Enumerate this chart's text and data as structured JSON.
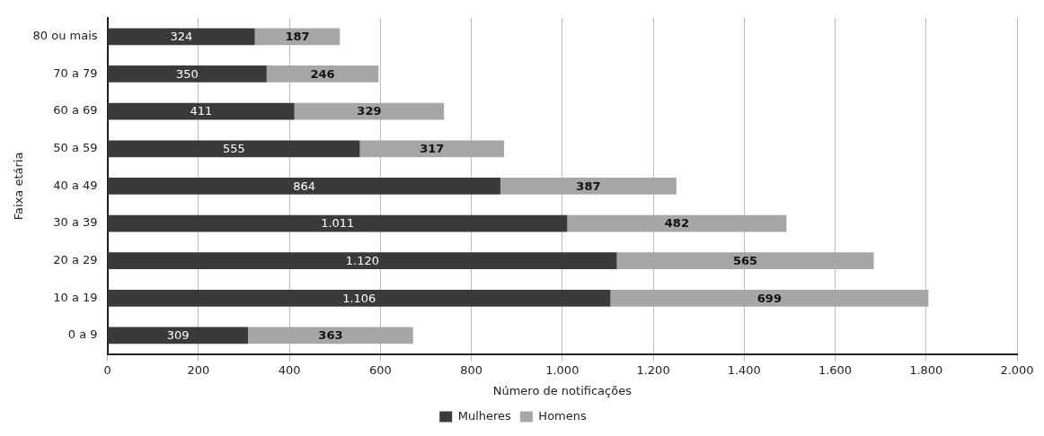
{
  "chart_data": {
    "type": "bar",
    "orientation": "horizontal",
    "stacked": true,
    "ylabel": "Faixa etária",
    "xlabel": "Número de notificações",
    "categories": [
      "80 ou mais",
      "70 a 79",
      "60 a 69",
      "50 a 59",
      "40 a 49",
      "30 a 39",
      "20 a 29",
      "10 a 19",
      "0 a 9"
    ],
    "series": [
      {
        "name": "Mulheres",
        "color": "#3a3a3a",
        "values": [
          324,
          350,
          411,
          555,
          864,
          1011,
          1120,
          1106,
          309
        ],
        "value_labels": [
          "324",
          "350",
          "411",
          "555",
          "864",
          "1.011",
          "1.120",
          "1.106",
          "309"
        ]
      },
      {
        "name": "Homens",
        "color": "#a6a6a6",
        "values": [
          187,
          246,
          329,
          317,
          387,
          482,
          565,
          699,
          363
        ],
        "value_labels": [
          "187",
          "246",
          "329",
          "317",
          "387",
          "482",
          "565",
          "699",
          "363"
        ]
      }
    ],
    "xlim": [
      0,
      2000
    ],
    "xticks": [
      0,
      200,
      400,
      600,
      800,
      {
        "value": 1000,
        "label": "1.000"
      },
      {
        "value": 1200,
        "label": "1.200"
      },
      {
        "value": 1400,
        "label": "1.400"
      },
      {
        "value": 1600,
        "label": "1.600"
      },
      {
        "value": 1800,
        "label": "1.800"
      },
      {
        "value": 2000,
        "label": "2.000"
      }
    ],
    "grid": "x",
    "legend": "bottom"
  }
}
